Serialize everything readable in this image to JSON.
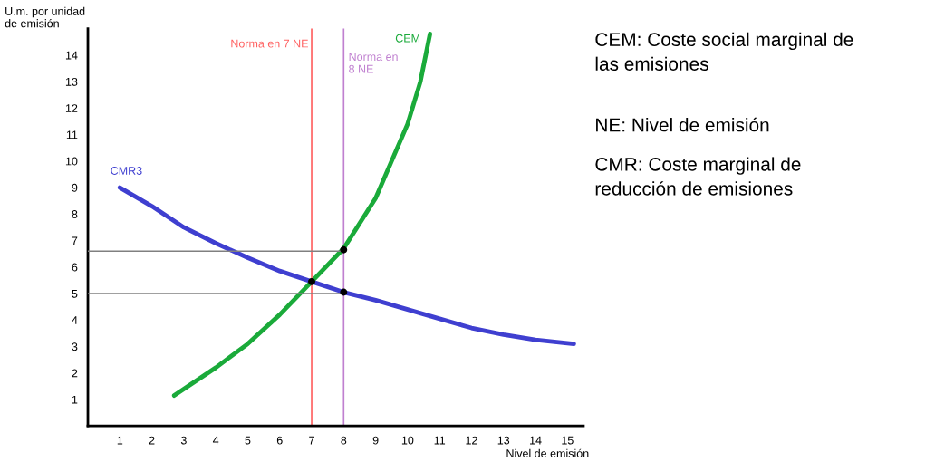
{
  "chart_data": {
    "type": "line",
    "xlabel": "Nivel de emisión",
    "ylabel": "U.m. por unidad\nde emisión",
    "xlim": [
      0,
      15.5
    ],
    "ylim": [
      0,
      15
    ],
    "xticks": [
      1,
      2,
      3,
      4,
      5,
      6,
      7,
      8,
      9,
      10,
      11,
      12,
      13,
      14,
      15
    ],
    "yticks": [
      1,
      2,
      3,
      4,
      5,
      6,
      7,
      8,
      9,
      10,
      11,
      12,
      13,
      14
    ],
    "grid": false,
    "series": [
      {
        "name": "CMR3",
        "color": "#3f3fd0",
        "x": [
          1,
          2,
          3,
          4,
          5,
          6,
          7,
          8,
          9,
          10,
          11,
          12,
          13,
          14,
          15.2
        ],
        "values": [
          9,
          8.3,
          7.5,
          6.9,
          6.35,
          5.85,
          5.45,
          5.05,
          4.75,
          4.4,
          4.05,
          3.7,
          3.45,
          3.25,
          3.1
        ]
      },
      {
        "name": "CEM",
        "color": "#1aaa3a",
        "x": [
          2.7,
          4,
          5,
          6,
          7,
          8,
          9,
          10,
          10.4,
          10.7
        ],
        "values": [
          1.15,
          2.2,
          3.1,
          4.2,
          5.45,
          6.7,
          8.6,
          11.4,
          13,
          14.8
        ]
      },
      {
        "color": "#808080",
        "x": [
          0,
          8
        ],
        "values": [
          6.6,
          6.6
        ]
      },
      {
        "color": "#808080",
        "x": [
          0,
          8
        ],
        "values": [
          5.0,
          5.0
        ]
      },
      {
        "type": "scatter",
        "color": "#000000",
        "x": [
          7,
          8,
          8
        ],
        "values": [
          5.45,
          6.65,
          5.05
        ]
      }
    ],
    "ref_lines": [
      {
        "axis": "x",
        "value": 7,
        "label": "Norma en 7 NE",
        "color": "#ff6060"
      },
      {
        "axis": "x",
        "value": 8,
        "label": "Norma en\n8 NE",
        "color": "#c080d0"
      }
    ],
    "annotations": [
      "CEM: Coste social marginal de\nlas emisiones",
      "NE: Nivel de emisión",
      "CMR: Coste marginal de\nreducción de emisiones"
    ]
  }
}
